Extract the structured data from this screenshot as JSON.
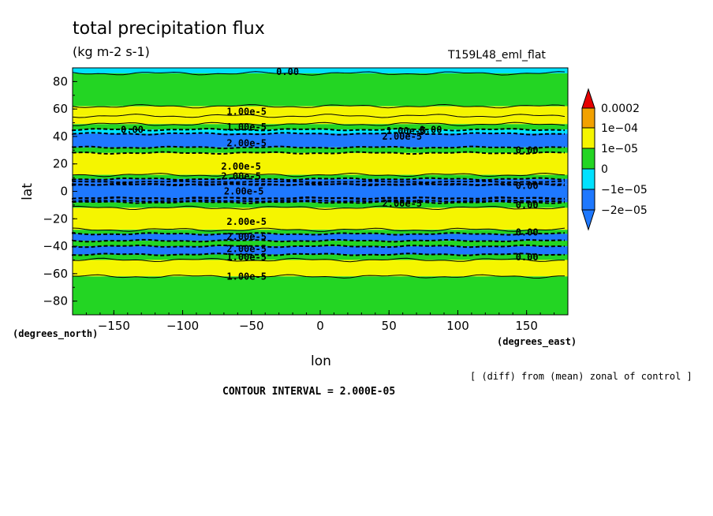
{
  "header": {
    "title": "total precipitation flux",
    "units": "(kg m-2 s-1)",
    "experiment": "T159L48_eml_flat"
  },
  "footer": {
    "lon_unit": "(degrees_east)",
    "lat_unit": "(degrees_north)",
    "x_axis_label": "lon",
    "note": "[ (diff) from (mean) zonal of control ]",
    "contour_interval": "CONTOUR INTERVAL = 2.000E-05"
  },
  "colors": {
    "c_0002": "#e60000",
    "c_1e04": "#f2a100",
    "c_1e05": "#f5f500",
    "c_0": "#23d523",
    "c_m1e05": "#00e1ff",
    "c_m2e05": "#1e78ff",
    "c_low": "#1e78ff"
  },
  "chart_data": {
    "type": "heatmap",
    "xlabel": "lon",
    "ylabel": "lat",
    "xlim": [
      -180,
      180
    ],
    "ylim": [
      -90,
      90
    ],
    "xticks": [
      -150,
      -100,
      -50,
      0,
      50,
      100,
      150
    ],
    "yticks": [
      -80,
      -60,
      -40,
      -20,
      0,
      20,
      40,
      60,
      80
    ],
    "legend": {
      "position": "right",
      "labels": [
        "0.0002",
        "1e-04",
        "1e-05",
        "0",
        "-1e-05",
        "-2e-05"
      ]
    },
    "bands": [
      {
        "lat": [
          86,
          90
        ],
        "cat": "c_m1e05"
      },
      {
        "lat": [
          62,
          86
        ],
        "cat": "c_0"
      },
      {
        "lat": [
          55,
          62
        ],
        "cat": "c_1e05"
      },
      {
        "lat": [
          49,
          55
        ],
        "cat": "c_1e05"
      },
      {
        "lat": [
          45,
          49
        ],
        "cat": "c_0"
      },
      {
        "lat": [
          42,
          45
        ],
        "cat": "c_m1e05"
      },
      {
        "lat": [
          32,
          42
        ],
        "cat": "c_m2e05"
      },
      {
        "lat": [
          28,
          32
        ],
        "cat": "c_0"
      },
      {
        "lat": [
          12,
          28
        ],
        "cat": "c_1e05"
      },
      {
        "lat": [
          9,
          12
        ],
        "cat": "c_0"
      },
      {
        "lat": [
          5,
          9
        ],
        "cat": "c_m2e05"
      },
      {
        "lat": [
          -5,
          5
        ],
        "cat": "c_m2e05"
      },
      {
        "lat": [
          -8,
          -5
        ],
        "cat": "c_m2e05"
      },
      {
        "lat": [
          -12,
          -8
        ],
        "cat": "c_0"
      },
      {
        "lat": [
          -28,
          -12
        ],
        "cat": "c_1e05"
      },
      {
        "lat": [
          -31,
          -28
        ],
        "cat": "c_0"
      },
      {
        "lat": [
          -36,
          -31
        ],
        "cat": "c_m2e05"
      },
      {
        "lat": [
          -40,
          -36
        ],
        "cat": "c_0"
      },
      {
        "lat": [
          -46,
          -40
        ],
        "cat": "c_m2e05"
      },
      {
        "lat": [
          -50,
          -46
        ],
        "cat": "c_0"
      },
      {
        "lat": [
          -62,
          -50
        ],
        "cat": "c_1e05"
      },
      {
        "lat": [
          -90,
          -62
        ],
        "cat": "c_0"
      }
    ],
    "contour_labels": [
      {
        "text": "0.00",
        "lon": -32,
        "lat": 87
      },
      {
        "text": "1.00e-5",
        "lon": -68,
        "lat": 58
      },
      {
        "text": "1.00e-5",
        "lon": -68,
        "lat": 47
      },
      {
        "text": "0.00",
        "lon": -145,
        "lat": 45
      },
      {
        "text": "1.00e-5",
        "lon": 48,
        "lat": 44
      },
      {
        "text": "0.00",
        "lon": 72,
        "lat": 45
      },
      {
        "text": "2.00e-5",
        "lon": 45,
        "lat": 40
      },
      {
        "text": "2.00e-5",
        "lon": -68,
        "lat": 35
      },
      {
        "text": "0.00",
        "lon": 142,
        "lat": 30
      },
      {
        "text": "2.00e-5",
        "lon": -72,
        "lat": 18
      },
      {
        "text": "2.00e-5",
        "lon": -72,
        "lat": 11
      },
      {
        "text": "0.00",
        "lon": 142,
        "lat": 4
      },
      {
        "text": "2.00e-5",
        "lon": -70,
        "lat": 0
      },
      {
        "text": "2.00e-5",
        "lon": 45,
        "lat": -9
      },
      {
        "text": "0.00",
        "lon": 142,
        "lat": -10
      },
      {
        "text": "2.00e-5",
        "lon": -68,
        "lat": -22
      },
      {
        "text": "2.00e-5",
        "lon": -68,
        "lat": -33
      },
      {
        "text": "0.00",
        "lon": 142,
        "lat": -30
      },
      {
        "text": "2.00e-5",
        "lon": -68,
        "lat": -42
      },
      {
        "text": "1.00e-5",
        "lon": -68,
        "lat": -48
      },
      {
        "text": "0.00",
        "lon": 142,
        "lat": -48
      },
      {
        "text": "1.00e-5",
        "lon": -68,
        "lat": -62
      }
    ]
  }
}
